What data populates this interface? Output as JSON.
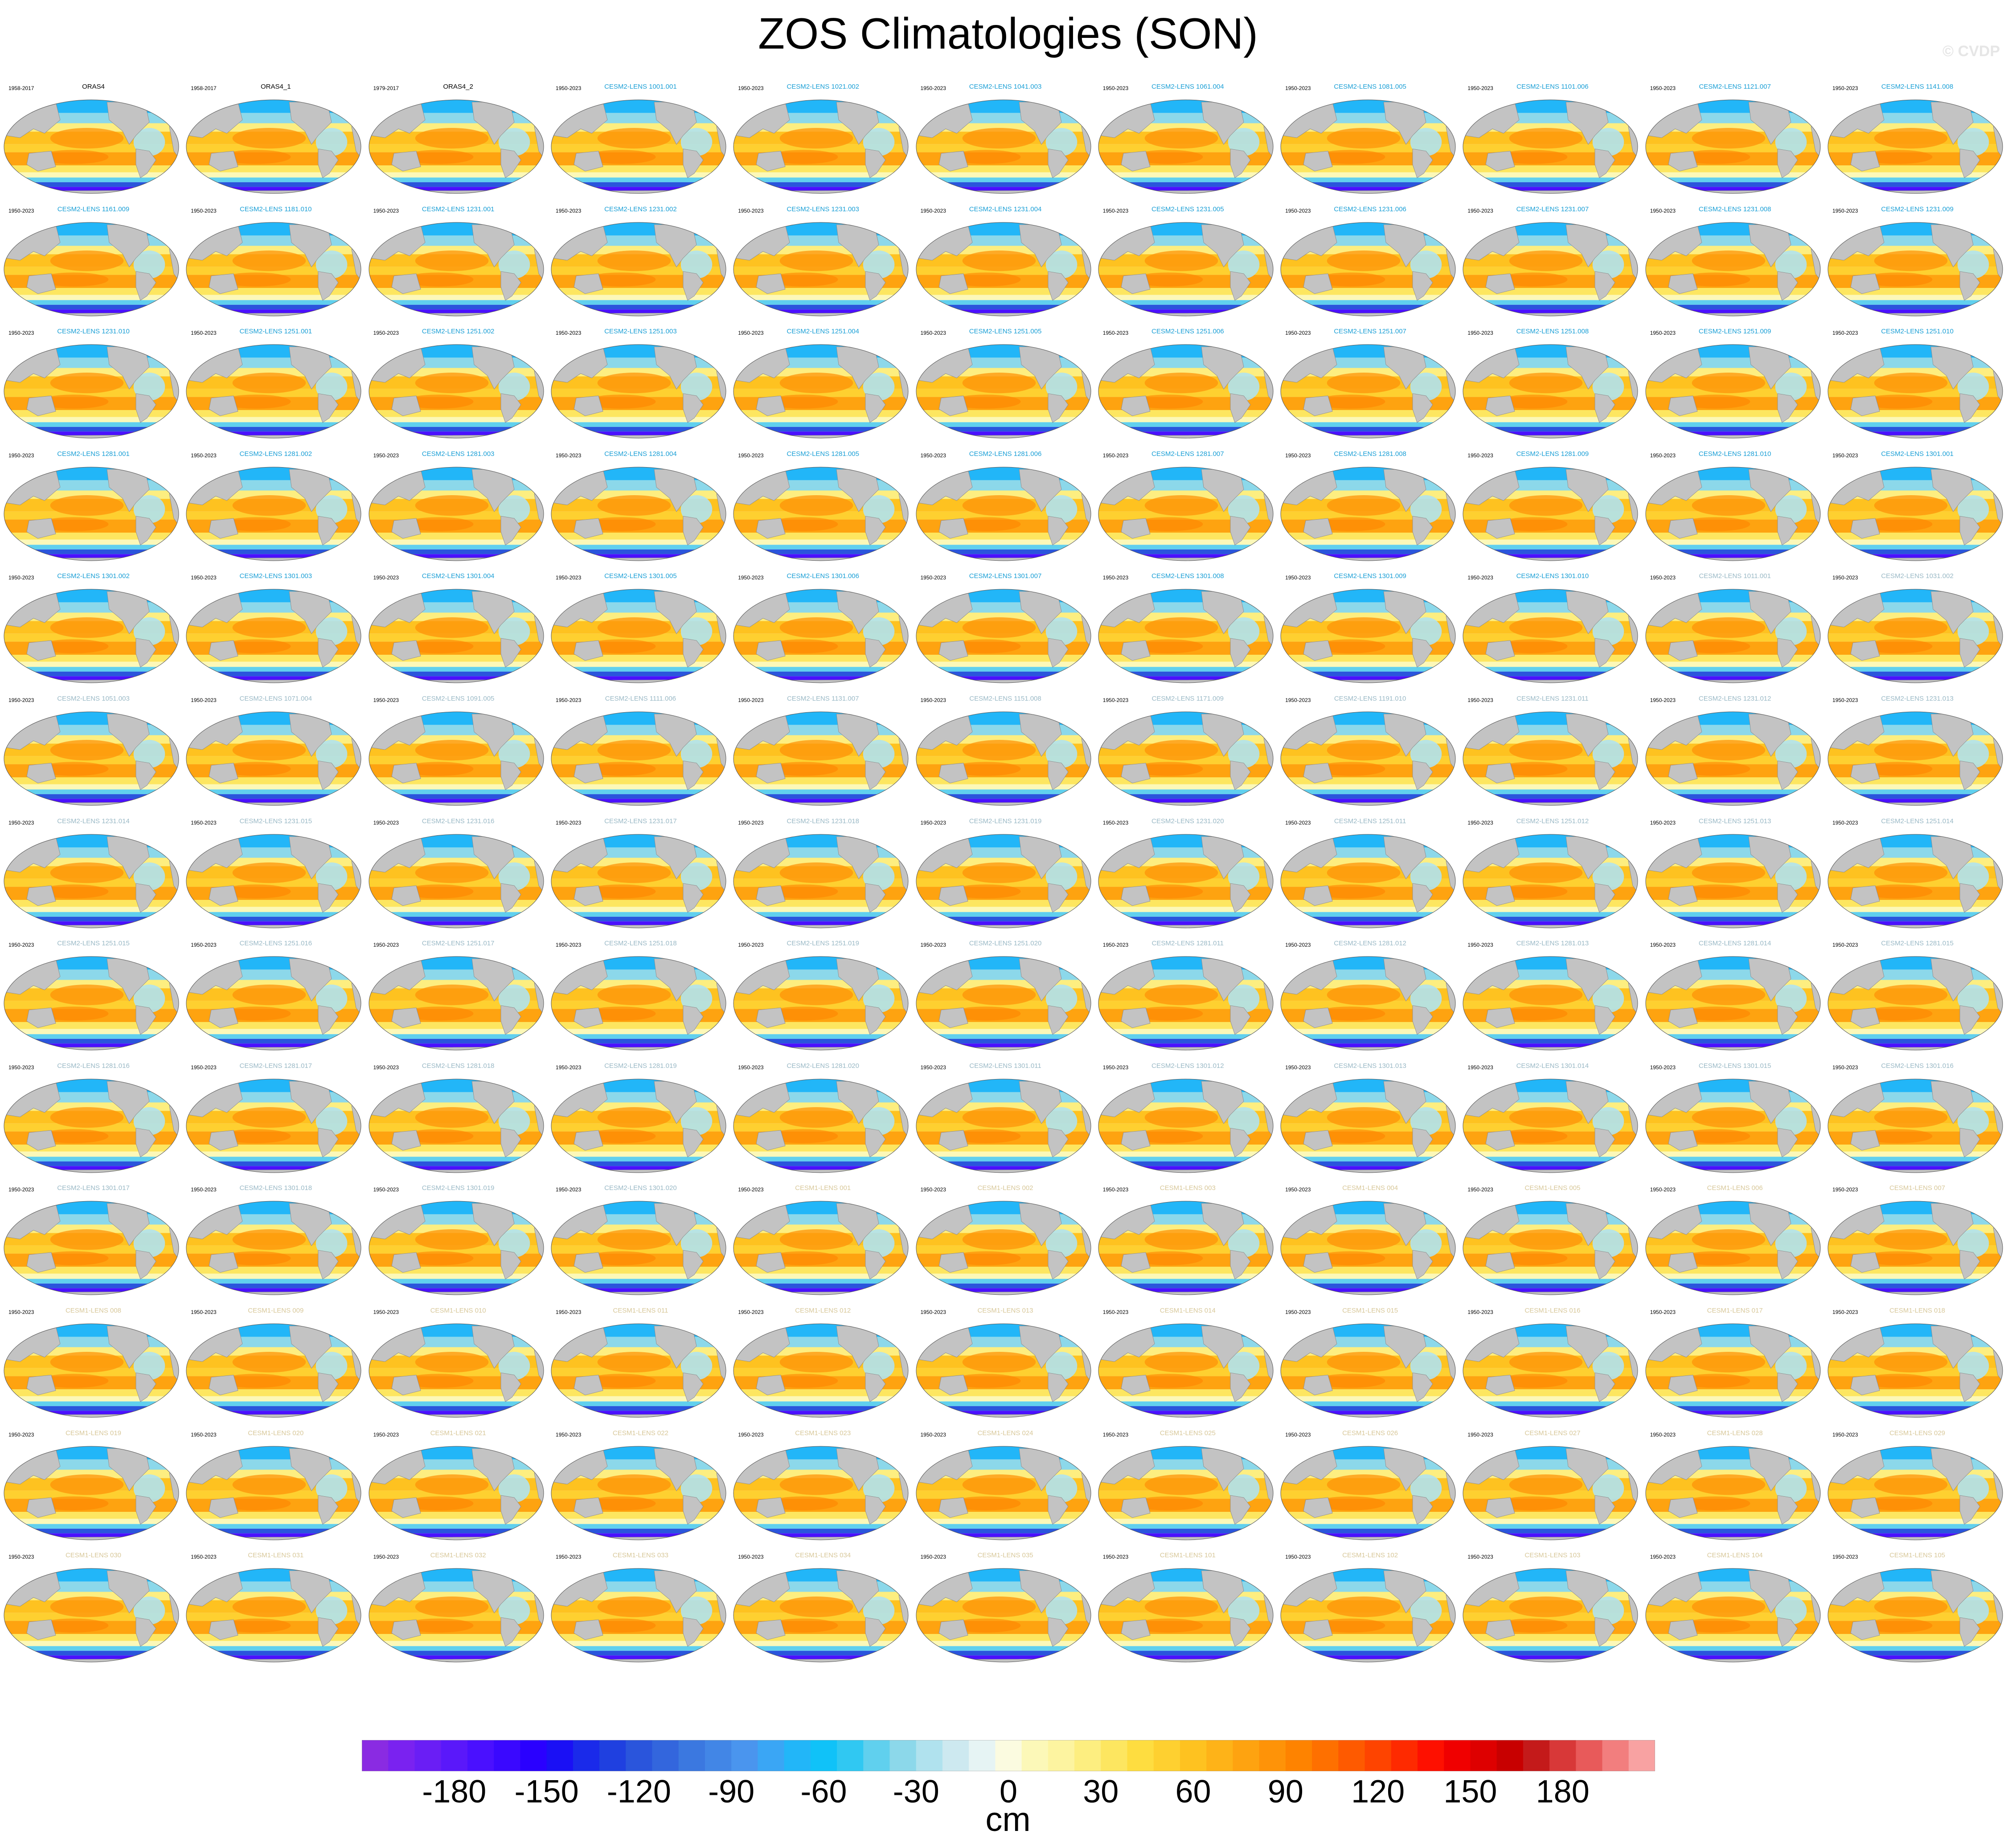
{
  "title": "ZOS Climatologies (SON)",
  "copyright": "© CVDP",
  "chart_data": {
    "type": "heatmap",
    "title": "ZOS Climatologies (SON)",
    "description_layout": "small multiples, 11 columns x 13 rows of global maps",
    "units": "cm",
    "colorbar": {
      "min": -210,
      "max": 210,
      "interval": 10,
      "ticks": [
        "-180",
        "-150",
        "-120",
        "-90",
        "-60",
        "-30",
        "0",
        "30",
        "60",
        "90",
        "120",
        "150",
        "180"
      ]
    },
    "panels": [
      {
        "name": "ORAS4",
        "period": "1958-2017",
        "group": "obs"
      },
      {
        "name": "ORAS4_1",
        "period": "1958-2017",
        "group": "obs"
      },
      {
        "name": "ORAS4_2",
        "period": "1979-2017",
        "group": "obs"
      },
      {
        "name": "CESM2-LENS 1001.001",
        "period": "1950-2023",
        "group": "cesm2"
      },
      {
        "name": "CESM2-LENS 1021.002",
        "period": "1950-2023",
        "group": "cesm2"
      },
      {
        "name": "CESM2-LENS 1041.003",
        "period": "1950-2023",
        "group": "cesm2"
      },
      {
        "name": "CESM2-LENS 1061.004",
        "period": "1950-2023",
        "group": "cesm2"
      },
      {
        "name": "CESM2-LENS 1081.005",
        "period": "1950-2023",
        "group": "cesm2"
      },
      {
        "name": "CESM2-LENS 1101.006",
        "period": "1950-2023",
        "group": "cesm2"
      },
      {
        "name": "CESM2-LENS 1121.007",
        "period": "1950-2023",
        "group": "cesm2"
      },
      {
        "name": "CESM2-LENS 1141.008",
        "period": "1950-2023",
        "group": "cesm2"
      },
      {
        "name": "CESM2-LENS 1161.009",
        "period": "1950-2023",
        "group": "cesm2"
      },
      {
        "name": "CESM2-LENS 1181.010",
        "period": "1950-2023",
        "group": "cesm2"
      },
      {
        "name": "CESM2-LENS 1231.001",
        "period": "1950-2023",
        "group": "cesm2"
      },
      {
        "name": "CESM2-LENS 1231.002",
        "period": "1950-2023",
        "group": "cesm2"
      },
      {
        "name": "CESM2-LENS 1231.003",
        "period": "1950-2023",
        "group": "cesm2"
      },
      {
        "name": "CESM2-LENS 1231.004",
        "period": "1950-2023",
        "group": "cesm2"
      },
      {
        "name": "CESM2-LENS 1231.005",
        "period": "1950-2023",
        "group": "cesm2"
      },
      {
        "name": "CESM2-LENS 1231.006",
        "period": "1950-2023",
        "group": "cesm2"
      },
      {
        "name": "CESM2-LENS 1231.007",
        "period": "1950-2023",
        "group": "cesm2"
      },
      {
        "name": "CESM2-LENS 1231.008",
        "period": "1950-2023",
        "group": "cesm2"
      },
      {
        "name": "CESM2-LENS 1231.009",
        "period": "1950-2023",
        "group": "cesm2"
      },
      {
        "name": "CESM2-LENS 1231.010",
        "period": "1950-2023",
        "group": "cesm2"
      },
      {
        "name": "CESM2-LENS 1251.001",
        "period": "1950-2023",
        "group": "cesm2"
      },
      {
        "name": "CESM2-LENS 1251.002",
        "period": "1950-2023",
        "group": "cesm2"
      },
      {
        "name": "CESM2-LENS 1251.003",
        "period": "1950-2023",
        "group": "cesm2"
      },
      {
        "name": "CESM2-LENS 1251.004",
        "period": "1950-2023",
        "group": "cesm2"
      },
      {
        "name": "CESM2-LENS 1251.005",
        "period": "1950-2023",
        "group": "cesm2"
      },
      {
        "name": "CESM2-LENS 1251.006",
        "period": "1950-2023",
        "group": "cesm2"
      },
      {
        "name": "CESM2-LENS 1251.007",
        "period": "1950-2023",
        "group": "cesm2"
      },
      {
        "name": "CESM2-LENS 1251.008",
        "period": "1950-2023",
        "group": "cesm2"
      },
      {
        "name": "CESM2-LENS 1251.009",
        "period": "1950-2023",
        "group": "cesm2"
      },
      {
        "name": "CESM2-LENS 1251.010",
        "period": "1950-2023",
        "group": "cesm2"
      },
      {
        "name": "CESM2-LENS 1281.001",
        "period": "1950-2023",
        "group": "cesm2"
      },
      {
        "name": "CESM2-LENS 1281.002",
        "period": "1950-2023",
        "group": "cesm2"
      },
      {
        "name": "CESM2-LENS 1281.003",
        "period": "1950-2023",
        "group": "cesm2"
      },
      {
        "name": "CESM2-LENS 1281.004",
        "period": "1950-2023",
        "group": "cesm2"
      },
      {
        "name": "CESM2-LENS 1281.005",
        "period": "1950-2023",
        "group": "cesm2"
      },
      {
        "name": "CESM2-LENS 1281.006",
        "period": "1950-2023",
        "group": "cesm2"
      },
      {
        "name": "CESM2-LENS 1281.007",
        "period": "1950-2023",
        "group": "cesm2"
      },
      {
        "name": "CESM2-LENS 1281.008",
        "period": "1950-2023",
        "group": "cesm2"
      },
      {
        "name": "CESM2-LENS 1281.009",
        "period": "1950-2023",
        "group": "cesm2"
      },
      {
        "name": "CESM2-LENS 1281.010",
        "period": "1950-2023",
        "group": "cesm2"
      },
      {
        "name": "CESM2-LENS 1301.001",
        "period": "1950-2023",
        "group": "cesm2"
      },
      {
        "name": "CESM2-LENS 1301.002",
        "period": "1950-2023",
        "group": "cesm2"
      },
      {
        "name": "CESM2-LENS 1301.003",
        "period": "1950-2023",
        "group": "cesm2"
      },
      {
        "name": "CESM2-LENS 1301.004",
        "period": "1950-2023",
        "group": "cesm2"
      },
      {
        "name": "CESM2-LENS 1301.005",
        "period": "1950-2023",
        "group": "cesm2"
      },
      {
        "name": "CESM2-LENS 1301.006",
        "period": "1950-2023",
        "group": "cesm2"
      },
      {
        "name": "CESM2-LENS 1301.007",
        "period": "1950-2023",
        "group": "cesm2"
      },
      {
        "name": "CESM2-LENS 1301.008",
        "period": "1950-2023",
        "group": "cesm2"
      },
      {
        "name": "CESM2-LENS 1301.009",
        "period": "1950-2023",
        "group": "cesm2"
      },
      {
        "name": "CESM2-LENS 1301.010",
        "period": "1950-2023",
        "group": "cesm2"
      },
      {
        "name": "CESM2-LENS 1011.001",
        "period": "1950-2023",
        "group": "cesm2s"
      },
      {
        "name": "CESM2-LENS 1031.002",
        "period": "1950-2023",
        "group": "cesm2s"
      },
      {
        "name": "CESM2-LENS 1051.003",
        "period": "1950-2023",
        "group": "cesm2s"
      },
      {
        "name": "CESM2-LENS 1071.004",
        "period": "1950-2023",
        "group": "cesm2s"
      },
      {
        "name": "CESM2-LENS 1091.005",
        "period": "1950-2023",
        "group": "cesm2s"
      },
      {
        "name": "CESM2-LENS 1111.006",
        "period": "1950-2023",
        "group": "cesm2s"
      },
      {
        "name": "CESM2-LENS 1131.007",
        "period": "1950-2023",
        "group": "cesm2s"
      },
      {
        "name": "CESM2-LENS 1151.008",
        "period": "1950-2023",
        "group": "cesm2s"
      },
      {
        "name": "CESM2-LENS 1171.009",
        "period": "1950-2023",
        "group": "cesm2s"
      },
      {
        "name": "CESM2-LENS 1191.010",
        "period": "1950-2023",
        "group": "cesm2s"
      },
      {
        "name": "CESM2-LENS 1231.011",
        "period": "1950-2023",
        "group": "cesm2s"
      },
      {
        "name": "CESM2-LENS 1231.012",
        "period": "1950-2023",
        "group": "cesm2s"
      },
      {
        "name": "CESM2-LENS 1231.013",
        "period": "1950-2023",
        "group": "cesm2s"
      },
      {
        "name": "CESM2-LENS 1231.014",
        "period": "1950-2023",
        "group": "cesm2s"
      },
      {
        "name": "CESM2-LENS 1231.015",
        "period": "1950-2023",
        "group": "cesm2s"
      },
      {
        "name": "CESM2-LENS 1231.016",
        "period": "1950-2023",
        "group": "cesm2s"
      },
      {
        "name": "CESM2-LENS 1231.017",
        "period": "1950-2023",
        "group": "cesm2s"
      },
      {
        "name": "CESM2-LENS 1231.018",
        "period": "1950-2023",
        "group": "cesm2s"
      },
      {
        "name": "CESM2-LENS 1231.019",
        "period": "1950-2023",
        "group": "cesm2s"
      },
      {
        "name": "CESM2-LENS 1231.020",
        "period": "1950-2023",
        "group": "cesm2s"
      },
      {
        "name": "CESM2-LENS 1251.011",
        "period": "1950-2023",
        "group": "cesm2s"
      },
      {
        "name": "CESM2-LENS 1251.012",
        "period": "1950-2023",
        "group": "cesm2s"
      },
      {
        "name": "CESM2-LENS 1251.013",
        "period": "1950-2023",
        "group": "cesm2s"
      },
      {
        "name": "CESM2-LENS 1251.014",
        "period": "1950-2023",
        "group": "cesm2s"
      },
      {
        "name": "CESM2-LENS 1251.015",
        "period": "1950-2023",
        "group": "cesm2s"
      },
      {
        "name": "CESM2-LENS 1251.016",
        "period": "1950-2023",
        "group": "cesm2s"
      },
      {
        "name": "CESM2-LENS 1251.017",
        "period": "1950-2023",
        "group": "cesm2s"
      },
      {
        "name": "CESM2-LENS 1251.018",
        "period": "1950-2023",
        "group": "cesm2s"
      },
      {
        "name": "CESM2-LENS 1251.019",
        "period": "1950-2023",
        "group": "cesm2s"
      },
      {
        "name": "CESM2-LENS 1251.020",
        "period": "1950-2023",
        "group": "cesm2s"
      },
      {
        "name": "CESM2-LENS 1281.011",
        "period": "1950-2023",
        "group": "cesm2s"
      },
      {
        "name": "CESM2-LENS 1281.012",
        "period": "1950-2023",
        "group": "cesm2s"
      },
      {
        "name": "CESM2-LENS 1281.013",
        "period": "1950-2023",
        "group": "cesm2s"
      },
      {
        "name": "CESM2-LENS 1281.014",
        "period": "1950-2023",
        "group": "cesm2s"
      },
      {
        "name": "CESM2-LENS 1281.015",
        "period": "1950-2023",
        "group": "cesm2s"
      },
      {
        "name": "CESM2-LENS 1281.016",
        "period": "1950-2023",
        "group": "cesm2s"
      },
      {
        "name": "CESM2-LENS 1281.017",
        "period": "1950-2023",
        "group": "cesm2s"
      },
      {
        "name": "CESM2-LENS 1281.018",
        "period": "1950-2023",
        "group": "cesm2s"
      },
      {
        "name": "CESM2-LENS 1281.019",
        "period": "1950-2023",
        "group": "cesm2s"
      },
      {
        "name": "CESM2-LENS 1281.020",
        "period": "1950-2023",
        "group": "cesm2s"
      },
      {
        "name": "CESM2-LENS 1301.011",
        "period": "1950-2023",
        "group": "cesm2s"
      },
      {
        "name": "CESM2-LENS 1301.012",
        "period": "1950-2023",
        "group": "cesm2s"
      },
      {
        "name": "CESM2-LENS 1301.013",
        "period": "1950-2023",
        "group": "cesm2s"
      },
      {
        "name": "CESM2-LENS 1301.014",
        "period": "1950-2023",
        "group": "cesm2s"
      },
      {
        "name": "CESM2-LENS 1301.015",
        "period": "1950-2023",
        "group": "cesm2s"
      },
      {
        "name": "CESM2-LENS 1301.016",
        "period": "1950-2023",
        "group": "cesm2s"
      },
      {
        "name": "CESM2-LENS 1301.017",
        "period": "1950-2023",
        "group": "cesm2s"
      },
      {
        "name": "CESM2-LENS 1301.018",
        "period": "1950-2023",
        "group": "cesm2s"
      },
      {
        "name": "CESM2-LENS 1301.019",
        "period": "1950-2023",
        "group": "cesm2s"
      },
      {
        "name": "CESM2-LENS 1301.020",
        "period": "1950-2023",
        "group": "cesm2s"
      },
      {
        "name": "CESM1-LENS 001",
        "period": "1950-2023",
        "group": "cesm1"
      },
      {
        "name": "CESM1-LENS 002",
        "period": "1950-2023",
        "group": "cesm1"
      },
      {
        "name": "CESM1-LENS 003",
        "period": "1950-2023",
        "group": "cesm1"
      },
      {
        "name": "CESM1-LENS 004",
        "period": "1950-2023",
        "group": "cesm1"
      },
      {
        "name": "CESM1-LENS 005",
        "period": "1950-2023",
        "group": "cesm1"
      },
      {
        "name": "CESM1-LENS 006",
        "period": "1950-2023",
        "group": "cesm1"
      },
      {
        "name": "CESM1-LENS 007",
        "period": "1950-2023",
        "group": "cesm1"
      },
      {
        "name": "CESM1-LENS 008",
        "period": "1950-2023",
        "group": "cesm1"
      },
      {
        "name": "CESM1-LENS 009",
        "period": "1950-2023",
        "group": "cesm1"
      },
      {
        "name": "CESM1-LENS 010",
        "period": "1950-2023",
        "group": "cesm1"
      },
      {
        "name": "CESM1-LENS 011",
        "period": "1950-2023",
        "group": "cesm1"
      },
      {
        "name": "CESM1-LENS 012",
        "period": "1950-2023",
        "group": "cesm1"
      },
      {
        "name": "CESM1-LENS 013",
        "period": "1950-2023",
        "group": "cesm1"
      },
      {
        "name": "CESM1-LENS 014",
        "period": "1950-2023",
        "group": "cesm1"
      },
      {
        "name": "CESM1-LENS 015",
        "period": "1950-2023",
        "group": "cesm1"
      },
      {
        "name": "CESM1-LENS 016",
        "period": "1950-2023",
        "group": "cesm1"
      },
      {
        "name": "CESM1-LENS 017",
        "period": "1950-2023",
        "group": "cesm1"
      },
      {
        "name": "CESM1-LENS 018",
        "period": "1950-2023",
        "group": "cesm1"
      },
      {
        "name": "CESM1-LENS 019",
        "period": "1950-2023",
        "group": "cesm1"
      },
      {
        "name": "CESM1-LENS 020",
        "period": "1950-2023",
        "group": "cesm1"
      },
      {
        "name": "CESM1-LENS 021",
        "period": "1950-2023",
        "group": "cesm1"
      },
      {
        "name": "CESM1-LENS 022",
        "period": "1950-2023",
        "group": "cesm1"
      },
      {
        "name": "CESM1-LENS 023",
        "period": "1950-2023",
        "group": "cesm1"
      },
      {
        "name": "CESM1-LENS 024",
        "period": "1950-2023",
        "group": "cesm1"
      },
      {
        "name": "CESM1-LENS 025",
        "period": "1950-2023",
        "group": "cesm1"
      },
      {
        "name": "CESM1-LENS 026",
        "period": "1950-2023",
        "group": "cesm1"
      },
      {
        "name": "CESM1-LENS 027",
        "period": "1950-2023",
        "group": "cesm1"
      },
      {
        "name": "CESM1-LENS 028",
        "period": "1950-2023",
        "group": "cesm1"
      },
      {
        "name": "CESM1-LENS 029",
        "period": "1950-2023",
        "group": "cesm1"
      },
      {
        "name": "CESM1-LENS 030",
        "period": "1950-2023",
        "group": "cesm1"
      },
      {
        "name": "CESM1-LENS 031",
        "period": "1950-2023",
        "group": "cesm1"
      },
      {
        "name": "CESM1-LENS 032",
        "period": "1950-2023",
        "group": "cesm1"
      },
      {
        "name": "CESM1-LENS 033",
        "period": "1950-2023",
        "group": "cesm1"
      },
      {
        "name": "CESM1-LENS 034",
        "period": "1950-2023",
        "group": "cesm1"
      },
      {
        "name": "CESM1-LENS 035",
        "period": "1950-2023",
        "group": "cesm1"
      },
      {
        "name": "CESM1-LENS 101",
        "period": "1950-2023",
        "group": "cesm1"
      },
      {
        "name": "CESM1-LENS 102",
        "period": "1950-2023",
        "group": "cesm1"
      },
      {
        "name": "CESM1-LENS 103",
        "period": "1950-2023",
        "group": "cesm1"
      },
      {
        "name": "CESM1-LENS 104",
        "period": "1950-2023",
        "group": "cesm1"
      },
      {
        "name": "CESM1-LENS 105",
        "period": "1950-2023",
        "group": "cesm1"
      }
    ]
  },
  "colors": {
    "obs_title": "#000000",
    "cesm2_title": "#1a9fd6",
    "cesm2s_title": "#9ab9c6",
    "cesm1_title": "#d8c89a",
    "land": "#c3c3c3",
    "colormap": [
      "#8a2be2",
      "#7a22f0",
      "#6a1ef5",
      "#5a18fa",
      "#4a10ff",
      "#3a08ff",
      "#2a00ff",
      "#1a10f5",
      "#1a2aea",
      "#1f40e0",
      "#2a55dc",
      "#3366dd",
      "#3b78e0",
      "#4286e6",
      "#4a95ee",
      "#3aa6f5",
      "#22b6f8",
      "#10c2f8",
      "#30c8f2",
      "#60d0ee",
      "#8cd8ea",
      "#b0e2ee",
      "#cde9f0",
      "#e6f4f4",
      "#fbfbe0",
      "#fcf8b8",
      "#fdf4a0",
      "#fdee80",
      "#fde660",
      "#fedd40",
      "#fed030",
      "#fec220",
      "#feb318",
      "#fea310",
      "#fe9308",
      "#fe8300",
      "#fe7000",
      "#fe5a00",
      "#fe4400",
      "#fe2a00",
      "#fe1000",
      "#f00000",
      "#de0000",
      "#c80000",
      "#c41a1a",
      "#d83838",
      "#e85a5a",
      "#f27e7e",
      "#f8a2a2"
    ]
  }
}
